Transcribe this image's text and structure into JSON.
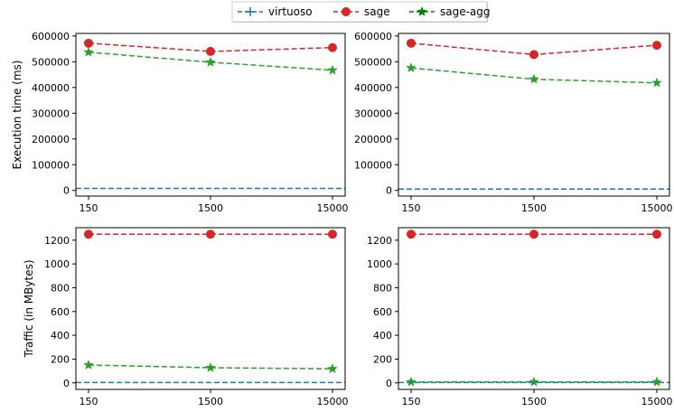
{
  "chart_data": [
    {
      "type": "line",
      "panel": "top-left",
      "categories": [
        "150",
        "1500",
        "15000"
      ],
      "ylabel": "Execution time (ms)",
      "ylim": [
        -22000,
        610000
      ],
      "yticks": [
        0,
        100000,
        200000,
        300000,
        400000,
        500000,
        600000
      ],
      "series": [
        {
          "name": "virtuoso",
          "values": [
            8000,
            8000,
            8000
          ]
        },
        {
          "name": "sage",
          "values": [
            572000,
            540000,
            555000
          ]
        },
        {
          "name": "sage-agg",
          "values": [
            537000,
            498000,
            467000
          ]
        }
      ]
    },
    {
      "type": "line",
      "panel": "top-right",
      "categories": [
        "150",
        "1500",
        "15000"
      ],
      "ylabel": "",
      "ylim": [
        -22000,
        610000
      ],
      "yticks": [
        0,
        100000,
        200000,
        300000,
        400000,
        500000,
        600000
      ],
      "series": [
        {
          "name": "virtuoso",
          "values": [
            5000,
            5000,
            5000
          ]
        },
        {
          "name": "sage",
          "values": [
            572000,
            528000,
            564000
          ]
        },
        {
          "name": "sage-agg",
          "values": [
            476000,
            432000,
            418000
          ]
        }
      ]
    },
    {
      "type": "line",
      "panel": "bottom-left",
      "categories": [
        "150",
        "1500",
        "15000"
      ],
      "ylabel": "Traffic (in MBytes)",
      "ylim": [
        -55,
        1305
      ],
      "yticks": [
        0,
        200,
        400,
        600,
        800,
        1000,
        1200
      ],
      "series": [
        {
          "name": "virtuoso",
          "values": [
            3,
            3,
            3
          ]
        },
        {
          "name": "sage",
          "values": [
            1250,
            1250,
            1250
          ]
        },
        {
          "name": "sage-agg",
          "values": [
            150,
            127,
            118
          ]
        }
      ]
    },
    {
      "type": "line",
      "panel": "bottom-right",
      "categories": [
        "150",
        "1500",
        "15000"
      ],
      "ylabel": "",
      "ylim": [
        -55,
        1305
      ],
      "yticks": [
        0,
        200,
        400,
        600,
        800,
        1000,
        1200
      ],
      "series": [
        {
          "name": "virtuoso",
          "values": [
            3,
            3,
            3
          ]
        },
        {
          "name": "sage",
          "values": [
            1250,
            1250,
            1250
          ]
        },
        {
          "name": "sage-agg",
          "values": [
            8,
            8,
            8
          ]
        }
      ]
    }
  ],
  "legend": {
    "placement": "top-center",
    "items": [
      {
        "name": "virtuoso",
        "color": "#1f77b4",
        "marker": "plus"
      },
      {
        "name": "sage",
        "color": "#d62728",
        "marker": "circle"
      },
      {
        "name": "sage-agg",
        "color": "#2ca02c",
        "marker": "star"
      }
    ]
  },
  "colors": {
    "virtuoso": "#1f77b4",
    "sage": "#d62728",
    "sage-agg": "#2ca02c",
    "sage-agg-legend": "#008000"
  }
}
